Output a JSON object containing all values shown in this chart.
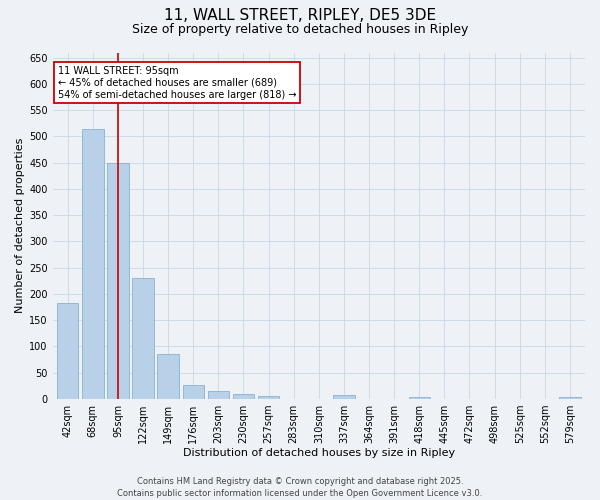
{
  "title": "11, WALL STREET, RIPLEY, DE5 3DE",
  "subtitle": "Size of property relative to detached houses in Ripley",
  "xlabel": "Distribution of detached houses by size in Ripley",
  "ylabel": "Number of detached properties",
  "categories": [
    "42sqm",
    "68sqm",
    "95sqm",
    "122sqm",
    "149sqm",
    "176sqm",
    "203sqm",
    "230sqm",
    "257sqm",
    "283sqm",
    "310sqm",
    "337sqm",
    "364sqm",
    "391sqm",
    "418sqm",
    "445sqm",
    "472sqm",
    "498sqm",
    "525sqm",
    "552sqm",
    "579sqm"
  ],
  "values": [
    182,
    515,
    450,
    230,
    85,
    26,
    15,
    9,
    6,
    0,
    0,
    8,
    0,
    0,
    4,
    0,
    0,
    0,
    0,
    0,
    4
  ],
  "bar_color": "#b8d0e8",
  "bar_edge_color": "#7aaac8",
  "highlight_bar_index": 2,
  "highlight_line_color": "#cc0000",
  "annotation_text": "11 WALL STREET: 95sqm\n← 45% of detached houses are smaller (689)\n54% of semi-detached houses are larger (818) →",
  "annotation_box_color": "#ffffff",
  "annotation_box_edge_color": "#cc0000",
  "ylim": [
    0,
    660
  ],
  "yticks": [
    0,
    50,
    100,
    150,
    200,
    250,
    300,
    350,
    400,
    450,
    500,
    550,
    600,
    650
  ],
  "grid_color": "#c8d8e8",
  "background_color": "#eef2f7",
  "footer_text": "Contains HM Land Registry data © Crown copyright and database right 2025.\nContains public sector information licensed under the Open Government Licence v3.0.",
  "title_fontsize": 11,
  "subtitle_fontsize": 9,
  "axis_label_fontsize": 8,
  "tick_fontsize": 7,
  "annotation_fontsize": 7,
  "footer_fontsize": 6
}
